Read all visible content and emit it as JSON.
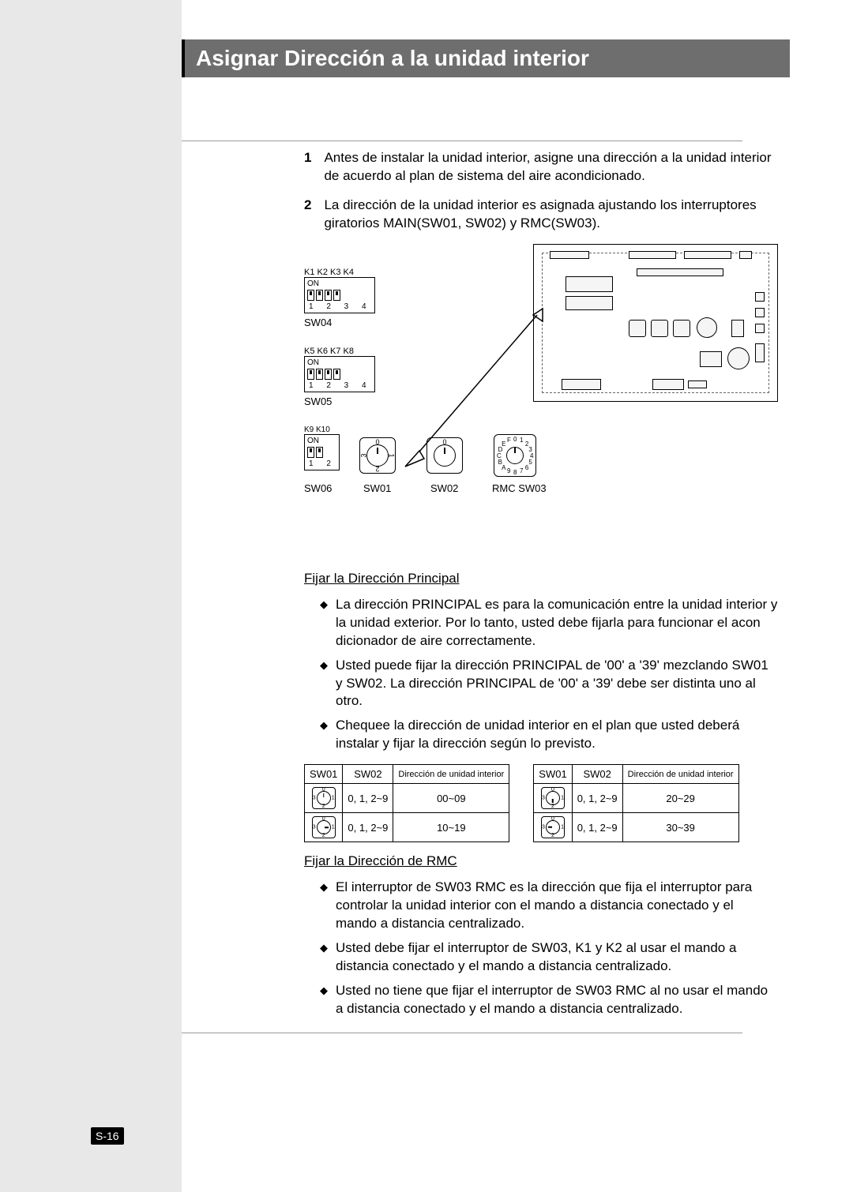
{
  "page_number": "S-16",
  "title": "Asignar Dirección a la unidad interior",
  "steps": [
    {
      "n": "1",
      "text": "Antes de instalar la unidad interior, asigne una dirección a la unidad interior de acuerdo al plan de sistema del aire acondicionado."
    },
    {
      "n": "2",
      "text": "La dirección de la unidad interior es asignada ajustando los interruptores giratorios MAIN(SW01, SW02) y RMC(SW03)."
    }
  ],
  "dip_labels": {
    "k14": "K1 K2 K3 K4",
    "sw04": "SW04",
    "k58": "K5 K6 K7 K8",
    "sw05": "SW05",
    "k910": "K9 K10",
    "on": "ON",
    "n1234": "1 2 3 4",
    "n12": "1 2"
  },
  "rotary_labels": {
    "sw06": "SW06",
    "sw01": "SW01",
    "sw02": "SW02",
    "rmc": "RMC  SW03"
  },
  "hex_chars": [
    "0",
    "1",
    "2",
    "3",
    "4",
    "5",
    "6",
    "7",
    "8",
    "9",
    "A",
    "B",
    "C",
    "D",
    "E",
    "F"
  ],
  "subhead1": "Fijar la Dirección Principal",
  "bullets1": [
    "La dirección PRINCIPAL es para la comunicación entre la unidad interior y la unidad exterior. Por lo tanto, usted debe fijarla para funcionar el acon dicionador de aire correctamente.",
    "Usted puede fijar la dirección PRINCIPAL de '00' a '39' mezclando SW01 y SW02. La dirección PRINCIPAL de '00' a '39' debe ser distinta uno al otro.",
    "Chequee la dirección de unidad interior en el plan que usted deberá instalar y fijar la dirección según lo previsto."
  ],
  "table": {
    "headers": [
      "SW01",
      "SW02",
      "Dirección de unidad interior"
    ],
    "left": [
      {
        "sw01_pos": "0",
        "sw02": "0, 1, 2~9",
        "addr": "00~09"
      },
      {
        "sw01_pos": "1",
        "sw02": "0, 1, 2~9",
        "addr": "10~19"
      }
    ],
    "right": [
      {
        "sw01_pos": "2",
        "sw02": "0, 1, 2~9",
        "addr": "20~29"
      },
      {
        "sw01_pos": "3",
        "sw02": "0, 1, 2~9",
        "addr": "30~39"
      }
    ]
  },
  "subhead2": "Fijar la Dirección de RMC",
  "bullets2": [
    "El interruptor de SW03 RMC es la dirección que fija el interruptor para controlar la unidad interior con el mando a distancia conectado y el mando a distancia centralizado.",
    "Usted debe fijar el interruptor de SW03, K1 y K2 al usar el mando a distancia conectado y el mando a distancia centralizado.",
    "Usted no tiene que fijar el interruptor de SW03 RMC al no usar el mando a distancia conectado y el mando a distancia centralizado."
  ]
}
